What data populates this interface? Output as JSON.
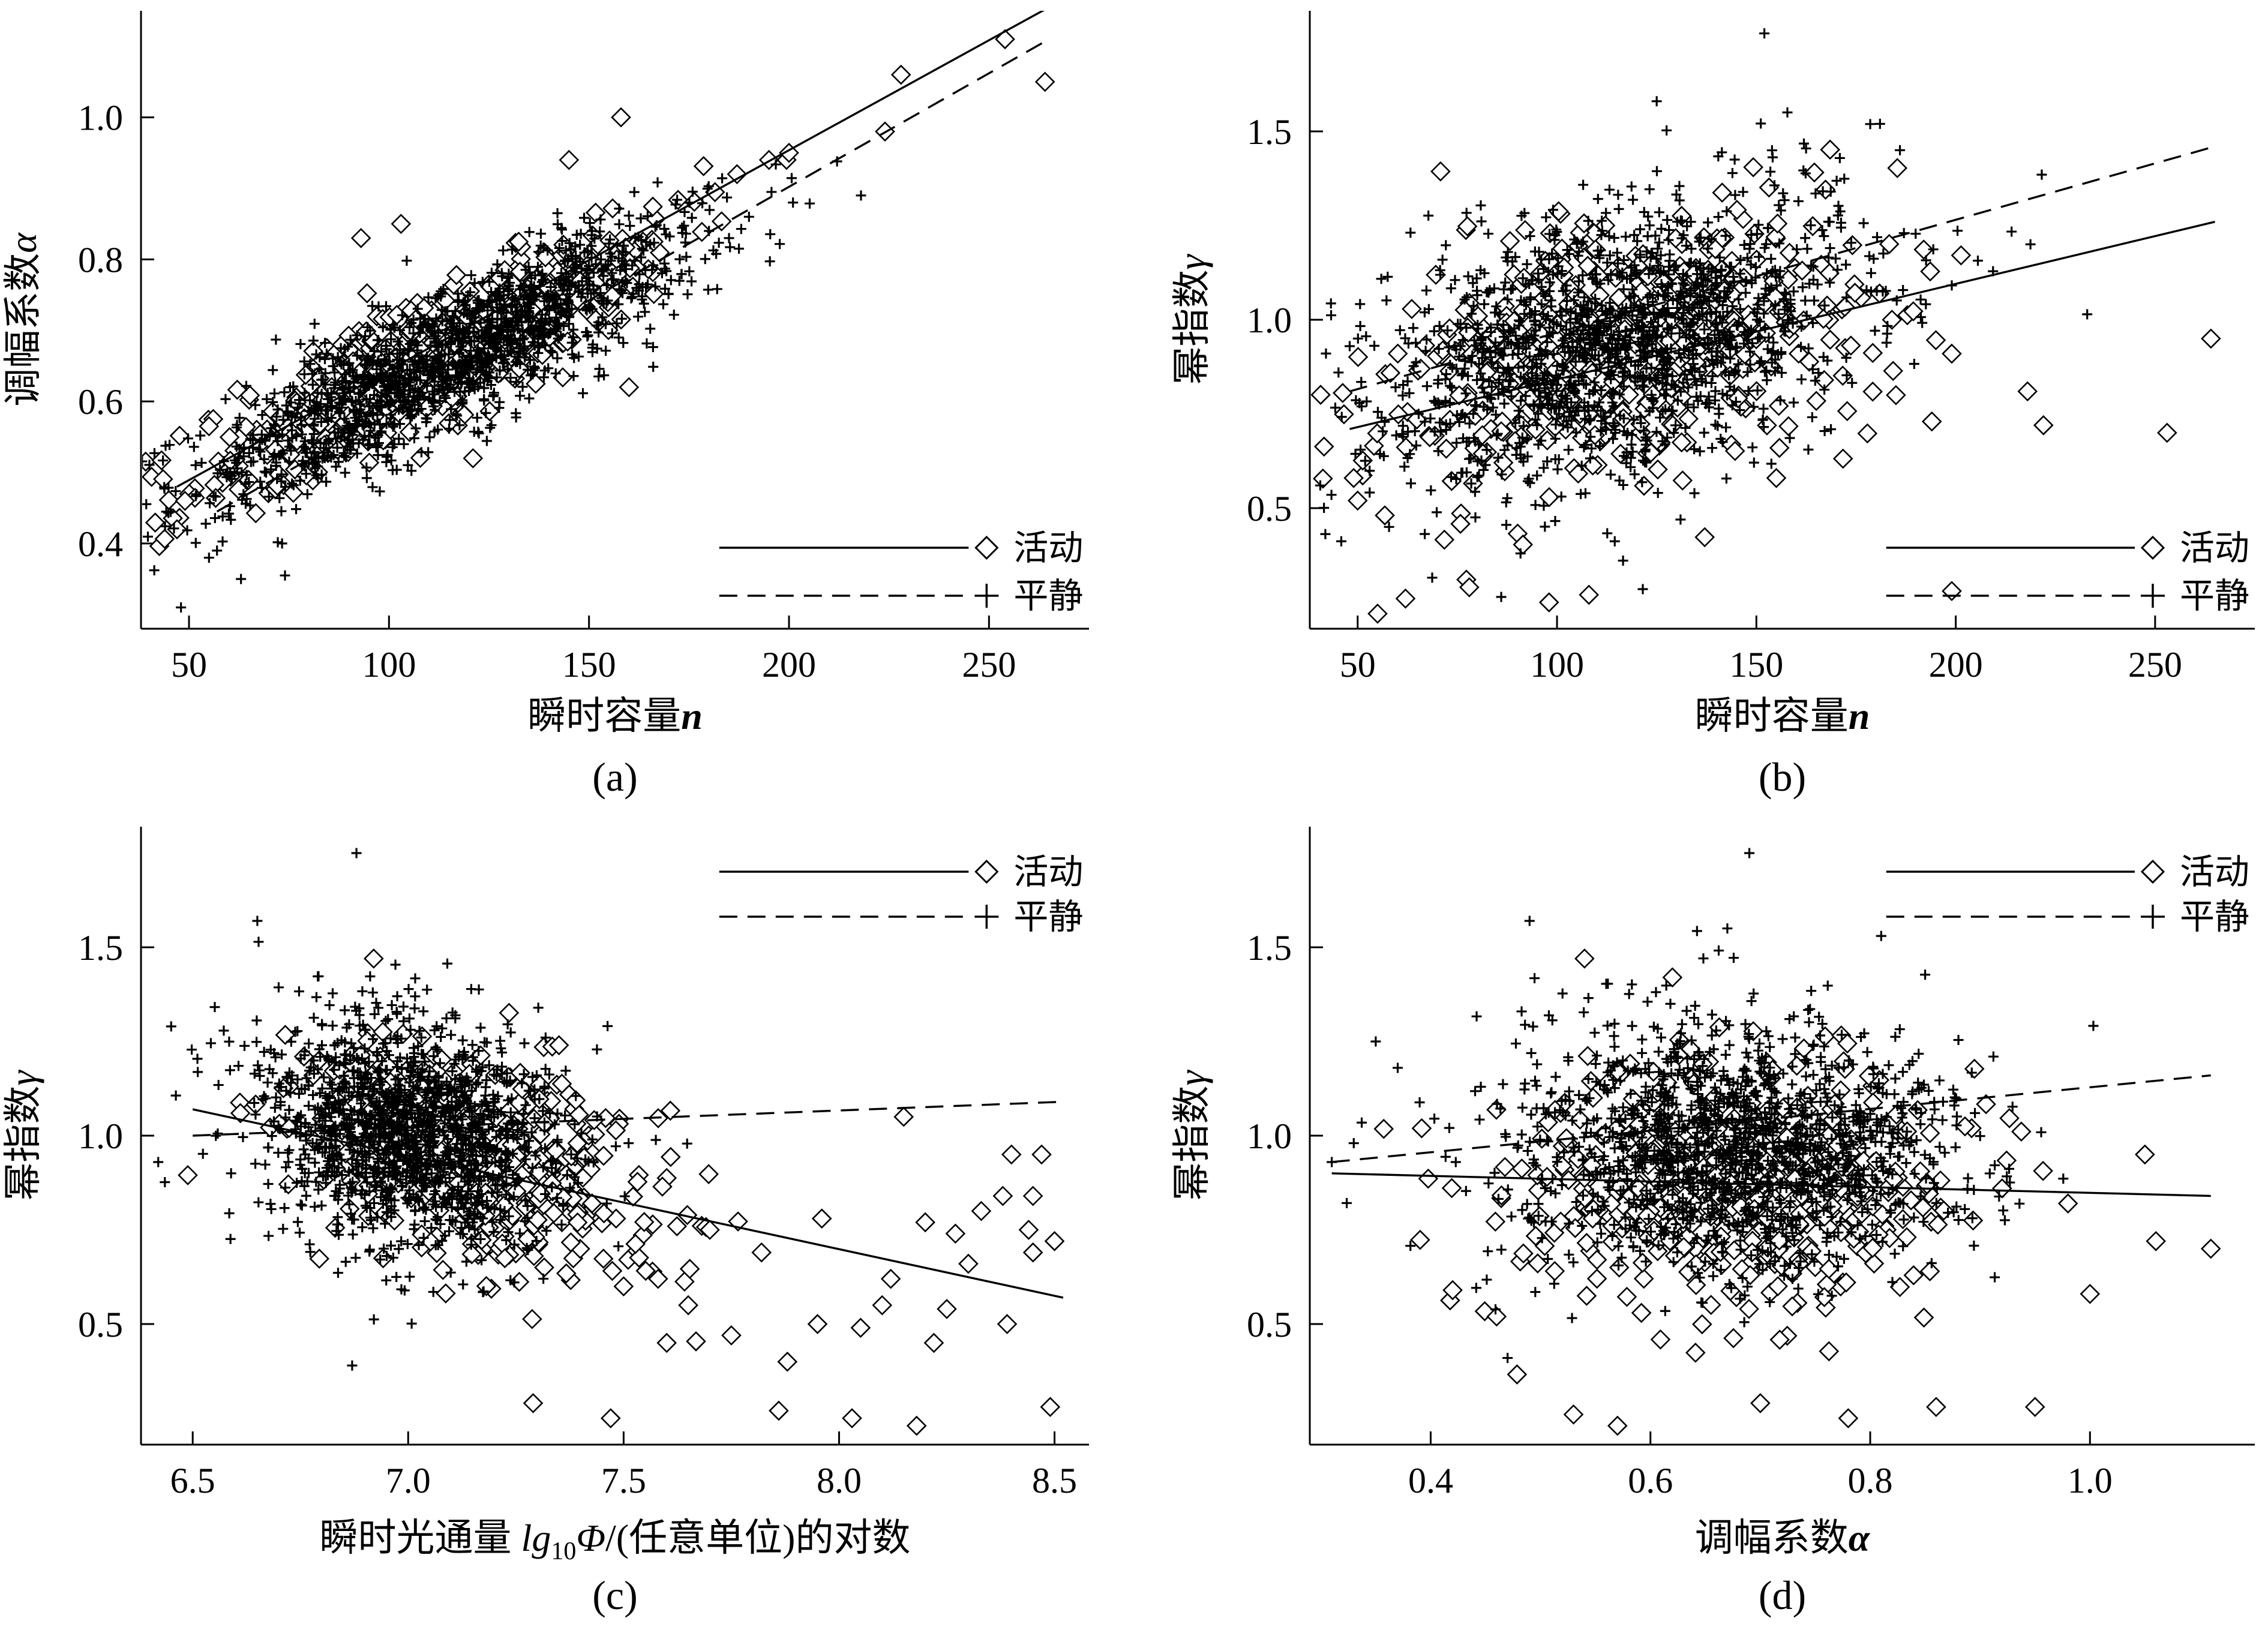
{
  "chart_data": [
    {
      "id": "a",
      "type": "scatter",
      "caption": "(a)",
      "xlabel": "瞬时容量",
      "xlabel_var": "n",
      "ylabel": "调幅系数",
      "ylabel_var": "α",
      "xlim": [
        38,
        275
      ],
      "ylim": [
        0.28,
        1.15
      ],
      "xticks": [
        50,
        100,
        150,
        200,
        250
      ],
      "xtick_labels": [
        "50",
        "100",
        "150",
        "200",
        "250"
      ],
      "yticks": [
        0.4,
        0.6,
        0.8,
        1.0
      ],
      "ytick_labels": [
        "0.4",
        "0.6",
        "0.8",
        "1.0"
      ],
      "legend_position": "bottom-right",
      "series": [
        {
          "name": "活动",
          "marker": "diamond",
          "line": "solid",
          "fit": [
            [
              47,
              0.48
            ],
            [
              265,
              1.155
            ]
          ],
          "cloud": {
            "cx": 110,
            "cy": 0.66,
            "sx": 28,
            "noise": 0.045,
            "slope": 0.0028,
            "count": 560
          },
          "points": [
            [
              47,
              0.42
            ],
            [
              49,
              0.46
            ],
            [
              55,
              0.565
            ],
            [
              224,
              0.98
            ],
            [
              228,
              1.06
            ],
            [
              254,
              1.11
            ],
            [
              264,
              1.05
            ],
            [
              200,
              0.95
            ],
            [
              195,
              0.94
            ],
            [
              158,
              1.0
            ],
            [
              145,
              0.94
            ],
            [
              121,
              0.52
            ],
            [
              160,
              0.62
            ],
            [
              93,
              0.83
            ],
            [
              103,
              0.85
            ],
            [
              187,
              0.92
            ]
          ]
        },
        {
          "name": "平静",
          "marker": "plus",
          "line": "dashed",
          "fit": [
            [
              57,
              0.445
            ],
            [
              265,
              1.11
            ]
          ],
          "cloud": {
            "cx": 115,
            "cy": 0.66,
            "sx": 30,
            "noise": 0.05,
            "slope": 0.0028,
            "count": 1400
          },
          "points": [
            [
              48,
              0.31
            ],
            [
              55,
              0.38
            ],
            [
              57,
              0.39
            ],
            [
              63,
              0.35
            ],
            [
              74,
              0.355
            ],
            [
              190,
              0.86
            ],
            [
              201,
              0.88
            ],
            [
              218,
              0.89
            ],
            [
              180,
              0.84
            ],
            [
              185,
              0.83
            ]
          ]
        }
      ]
    },
    {
      "id": "b",
      "type": "scatter",
      "caption": "(b)",
      "xlabel": "瞬时容量",
      "xlabel_var": "n",
      "ylabel": "幂指数",
      "ylabel_var": "γ",
      "xlim": [
        38,
        275
      ],
      "ylim": [
        0.18,
        1.82
      ],
      "xticks": [
        50,
        100,
        150,
        200,
        250
      ],
      "xtick_labels": [
        "50",
        "100",
        "150",
        "200",
        "250"
      ],
      "yticks": [
        0.5,
        1.0,
        1.5
      ],
      "ytick_labels": [
        "0.5",
        "1.0",
        "1.5"
      ],
      "legend_position": "bottom-right",
      "series": [
        {
          "name": "活动",
          "marker": "diamond",
          "line": "solid",
          "fit": [
            [
              48,
              0.71
            ],
            [
              265,
              1.26
            ]
          ],
          "cloud": {
            "cx": 115,
            "cy": 0.92,
            "sx": 30,
            "noise": 0.17,
            "slope": 0.0018,
            "count": 520
          },
          "points": [
            [
              49,
              0.58
            ],
            [
              50,
              0.52
            ],
            [
              55,
              0.22
            ],
            [
              62,
              0.26
            ],
            [
              78,
              0.29
            ],
            [
              98,
              0.25
            ],
            [
              108,
              0.27
            ],
            [
              184,
              1.0
            ],
            [
              185,
              0.8
            ],
            [
              194,
              0.73
            ],
            [
              199,
              0.91
            ],
            [
              218,
              0.81
            ],
            [
              222,
              0.72
            ],
            [
              253,
              0.7
            ],
            [
              264,
              0.95
            ],
            [
              199,
              0.28
            ],
            [
              167,
              0.84
            ],
            [
              155,
              0.58
            ]
          ]
        },
        {
          "name": "平静",
          "marker": "plus",
          "line": "dashed",
          "fit": [
            [
              48,
              0.81
            ],
            [
              265,
              1.46
            ]
          ],
          "cloud": {
            "cx": 115,
            "cy": 0.95,
            "sx": 30,
            "noise": 0.18,
            "slope": 0.0025,
            "count": 1400
          },
          "points": [
            [
              48,
              0.93
            ],
            [
              51,
              0.77
            ],
            [
              56,
              0.74
            ],
            [
              152,
              1.76
            ],
            [
              125,
              1.58
            ],
            [
              186,
              1.45
            ],
            [
              181,
              1.52
            ],
            [
              187,
              1.23
            ]
          ]
        }
      ]
    },
    {
      "id": "c",
      "type": "scatter",
      "caption": "(c)",
      "xlabel": "瞬时光通量 ",
      "xlabel_var": "lg",
      "xlabel_sub": "10",
      "xlabel_var2": "Φ",
      "xlabel_tail": "/(任意单位)的对数",
      "ylabel": "幂指数",
      "ylabel_var": "γ",
      "xlim": [
        6.38,
        8.58
      ],
      "ylim": [
        0.18,
        1.82
      ],
      "xticks": [
        6.5,
        7.0,
        7.5,
        8.0,
        8.5
      ],
      "xtick_labels": [
        "6.5",
        "7.0",
        "7.5",
        "8.0",
        "8.5"
      ],
      "yticks": [
        0.5,
        1.0,
        1.5
      ],
      "ytick_labels": [
        "0.5",
        "1.0",
        "1.5"
      ],
      "legend_position": "top-right",
      "series": [
        {
          "name": "活动",
          "marker": "diamond",
          "line": "solid",
          "fit": [
            [
              6.5,
              1.07
            ],
            [
              8.52,
              0.57
            ]
          ],
          "cloud": {
            "cx": 7.15,
            "cy": 0.93,
            "sx": 0.22,
            "noise": 0.14,
            "slope": -0.28,
            "count": 480
          },
          "points": [
            [
              7.29,
              0.29
            ],
            [
              7.47,
              0.25
            ],
            [
              7.86,
              0.27
            ],
            [
              8.03,
              0.25
            ],
            [
              8.18,
              0.23
            ],
            [
              8.49,
              0.28
            ],
            [
              8.15,
              1.05
            ],
            [
              8.4,
              0.95
            ],
            [
              8.47,
              0.95
            ],
            [
              7.35,
              1.24
            ],
            [
              6.92,
              1.47
            ],
            [
              7.96,
              0.78
            ],
            [
              8.33,
              0.8
            ],
            [
              8.38,
              0.84
            ],
            [
              8.44,
              0.75
            ],
            [
              8.27,
              0.74
            ],
            [
              8.3,
              0.66
            ],
            [
              8.25,
              0.54
            ],
            [
              8.39,
              0.5
            ],
            [
              8.12,
              0.62
            ],
            [
              8.05,
              0.49
            ],
            [
              7.95,
              0.5
            ],
            [
              7.88,
              0.4
            ],
            [
              7.75,
              0.47
            ],
            [
              7.65,
              0.55
            ],
            [
              7.58,
              0.62
            ],
            [
              8.2,
              0.77
            ],
            [
              8.5,
              0.72
            ],
            [
              8.45,
              0.69
            ],
            [
              7.82,
              0.69
            ],
            [
              7.7,
              0.75
            ],
            [
              8.1,
              0.55
            ],
            [
              8.22,
              0.45
            ],
            [
              7.6,
              0.45
            ],
            [
              7.5,
              0.6
            ],
            [
              8.45,
              0.84
            ]
          ]
        },
        {
          "name": "平静",
          "marker": "plus",
          "line": "dashed",
          "fit": [
            [
              6.5,
              1.0
            ],
            [
              8.52,
              1.09
            ]
          ],
          "cloud": {
            "cx": 7.0,
            "cy": 1.01,
            "sx": 0.17,
            "noise": 0.15,
            "slope": -0.15,
            "count": 1400
          },
          "points": [
            [
              6.88,
              1.75
            ],
            [
              6.42,
              0.93
            ],
            [
              6.45,
              1.29
            ],
            [
              6.65,
              1.57
            ],
            [
              6.87,
              0.39
            ]
          ]
        }
      ]
    },
    {
      "id": "d",
      "type": "scatter",
      "caption": "(d)",
      "xlabel": "调幅系数",
      "xlabel_var": "α",
      "ylabel": "幂指数",
      "ylabel_var": "γ",
      "xlim": [
        0.29,
        1.15
      ],
      "ylim": [
        0.18,
        1.82
      ],
      "xticks": [
        0.4,
        0.6,
        0.8,
        1.0
      ],
      "xtick_labels": [
        "0.4",
        "0.6",
        "0.8",
        "1.0"
      ],
      "yticks": [
        0.5,
        1.0,
        1.5
      ],
      "ytick_labels": [
        "0.5",
        "1.0",
        "1.5"
      ],
      "legend_position": "top-right",
      "series": [
        {
          "name": "活动",
          "marker": "diamond",
          "line": "solid",
          "fit": [
            [
              0.31,
              0.9
            ],
            [
              1.11,
              0.84
            ]
          ],
          "cloud": {
            "cx": 0.68,
            "cy": 0.88,
            "sx": 0.1,
            "noise": 0.16,
            "slope": 0,
            "count": 520
          },
          "points": [
            [
              0.53,
              0.26
            ],
            [
              0.57,
              0.23
            ],
            [
              0.7,
              0.29
            ],
            [
              0.78,
              0.25
            ],
            [
              0.86,
              0.28
            ],
            [
              0.95,
              0.28
            ],
            [
              1.05,
              0.95
            ],
            [
              1.06,
              0.72
            ],
            [
              1.11,
              0.7
            ],
            [
              1.0,
              0.58
            ],
            [
              0.98,
              0.82
            ],
            [
              0.92,
              0.86
            ],
            [
              0.42,
              0.59
            ],
            [
              0.46,
              0.52
            ],
            [
              0.54,
              1.47
            ],
            [
              0.62,
              1.42
            ]
          ]
        },
        {
          "name": "平静",
          "marker": "plus",
          "line": "dashed",
          "fit": [
            [
              0.31,
              0.93
            ],
            [
              1.11,
              1.16
            ]
          ],
          "cloud": {
            "cx": 0.68,
            "cy": 0.97,
            "sx": 0.1,
            "noise": 0.17,
            "slope": 0,
            "count": 1400
          },
          "points": [
            [
              0.31,
              0.93
            ],
            [
              0.33,
              0.98
            ],
            [
              0.35,
              1.25
            ],
            [
              0.37,
              1.18
            ],
            [
              0.47,
              0.41
            ],
            [
              0.49,
              1.57
            ],
            [
              0.69,
              1.75
            ],
            [
              0.67,
              1.55
            ],
            [
              0.81,
              1.53
            ]
          ]
        }
      ]
    }
  ]
}
